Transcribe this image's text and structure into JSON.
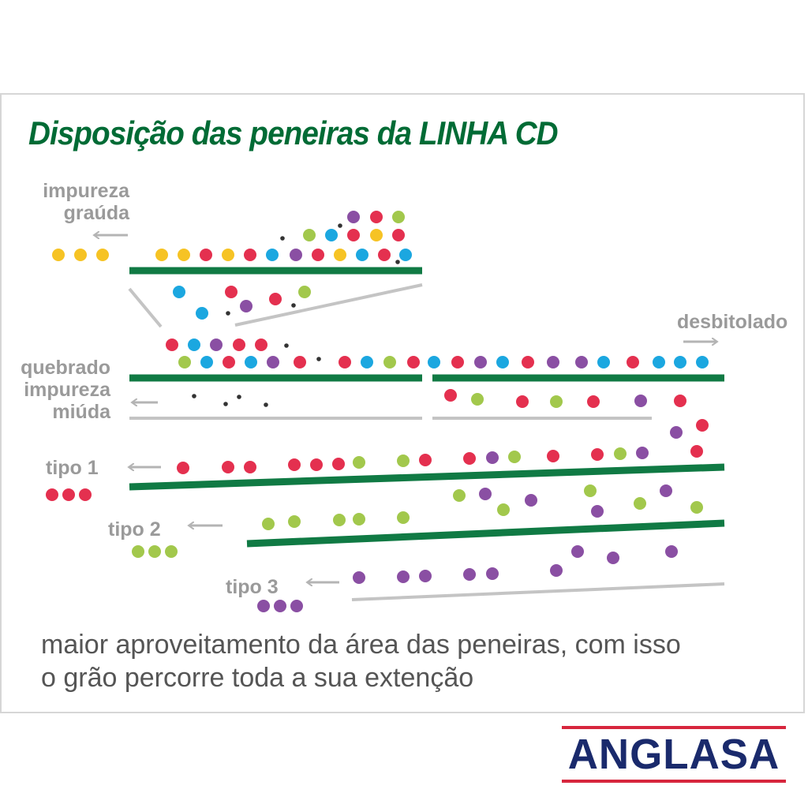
{
  "title": "Disposição das peneiras da LINHA CD",
  "labels": {
    "impureza_grauda": [
      "impureza",
      "graúda"
    ],
    "desbitolado": "desbitolado",
    "quebrado": [
      "quebrado",
      "impureza",
      "miúda"
    ],
    "tipo1": "tipo 1",
    "tipo2": "tipo 2",
    "tipo3": "tipo 3"
  },
  "caption": [
    "maior aproveitamento da área das peneiras, com isso",
    "o grão percorre toda a sua extenção"
  ],
  "logo": {
    "text": "ANGLASA",
    "text_color": "#1a2a6c",
    "bar_color": "#d7263d"
  },
  "colors": {
    "screen": "#107a44",
    "guide": "#c4c4c4",
    "arrow": "#b4b4b4",
    "y": "#f6c324",
    "r": "#e4304f",
    "b": "#1ba7e0",
    "p": "#8a4fa3",
    "g": "#a2c84c",
    "k": "#333333"
  }
}
